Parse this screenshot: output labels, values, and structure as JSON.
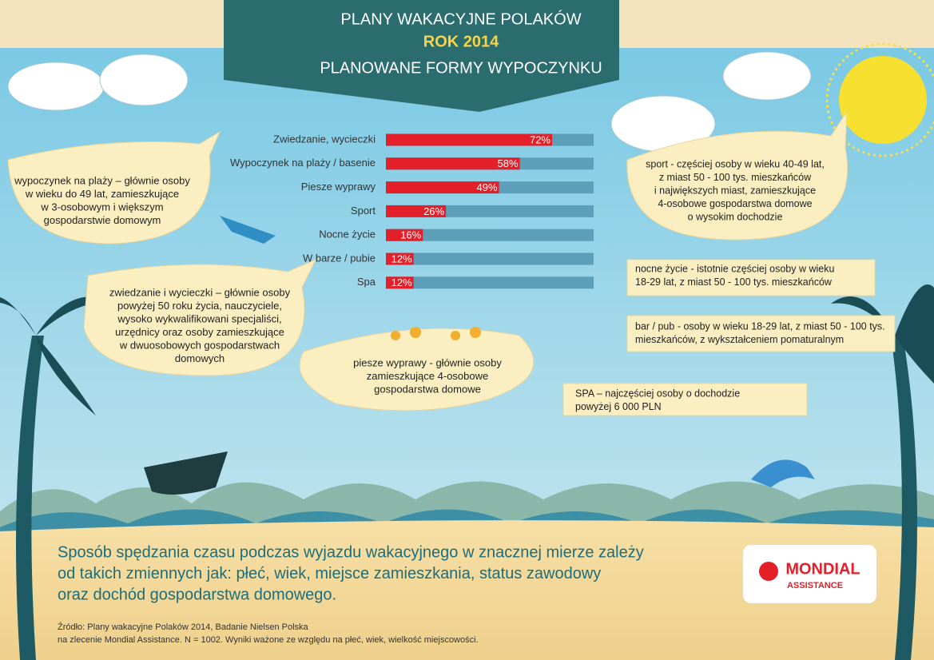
{
  "chart_data": {
    "type": "bar",
    "orientation": "horizontal",
    "title": "PLANY WAKACYJNE POLAKÓW",
    "year": "ROK 2014",
    "subtitle": "PLANOWANE FORMY WYPOCZYNKU",
    "categories": [
      "Zwiedzanie, wycieczki",
      "Wypoczynek na plaży / basenie",
      "Piesze wyprawy",
      "Sport",
      "Nocne życie",
      "W barze / pubie",
      "Spa"
    ],
    "values": [
      72,
      58,
      49,
      26,
      16,
      12,
      12
    ],
    "value_labels": [
      "72%",
      "58%",
      "49%",
      "26%",
      "16%",
      "12%",
      "12%"
    ],
    "color": "#e3202a",
    "xlim": [
      0,
      90
    ],
    "annotations": [
      {
        "lines": [
          "wypoczynek na plaży – głównie osoby",
          "w wieku do 49 lat, zamieszkujące",
          "w 3-osobowym i większym",
          "gospodarstwie domowym"
        ]
      },
      {
        "lines": [
          "zwiedzanie i wycieczki – głównie osoby",
          "powyżej 50 roku życia, nauczyciele,",
          "wysoko wykwalifikowani specjaliści,",
          "urzędnicy oraz osoby zamieszkujące",
          "w dwuosobowych gospodarstwach",
          "domowych"
        ]
      },
      {
        "lines": [
          "piesze wyprawy - głównie osoby",
          "zamieszkujące 4-osobowe",
          "gospodarstwa domowe"
        ]
      },
      {
        "lines": [
          "sport - częściej osoby w wieku 40-49 lat,",
          "z miast 50 - 100 tys. mieszkańców",
          "i największych miast, zamieszkujące",
          "4-osobowe gospodarstwa domowe",
          "o wysokim dochodzie"
        ]
      },
      {
        "lines": [
          "nocne życie - istotnie częściej osoby w wieku",
          "18-29 lat, z miast 50 - 100 tys. mieszkańców"
        ]
      },
      {
        "lines": [
          "bar / pub - osoby w wieku 18-29 lat, z miast 50 - 100 tys.",
          "mieszkańców, z wykształceniem pomaturalnym"
        ]
      },
      {
        "lines": [
          "SPA – najczęściej osoby o dochodzie",
          "powyżej 6 000 PLN"
        ]
      }
    ]
  },
  "footer": {
    "lines": [
      "Sposób spędzania czasu podczas wyjazdu wakacyjnego w znacznej mierze zależy",
      "od takich zmiennych jak: płeć, wiek, miejsce zamieszkania, status zawodowy",
      "oraz dochód gospodarstwa domowego."
    ]
  },
  "source": {
    "lines": [
      "Źródło: Plany wakacyjne Polaków 2014, Badanie Nielsen Polska",
      "na zlecenie Mondial Assistance. N = 1002.  Wyniki ważone ze względu na płeć, wiek, wielkość miejscowości."
    ]
  },
  "logo": {
    "name": "MONDIAL",
    "tagline": "ASSISTANCE"
  }
}
